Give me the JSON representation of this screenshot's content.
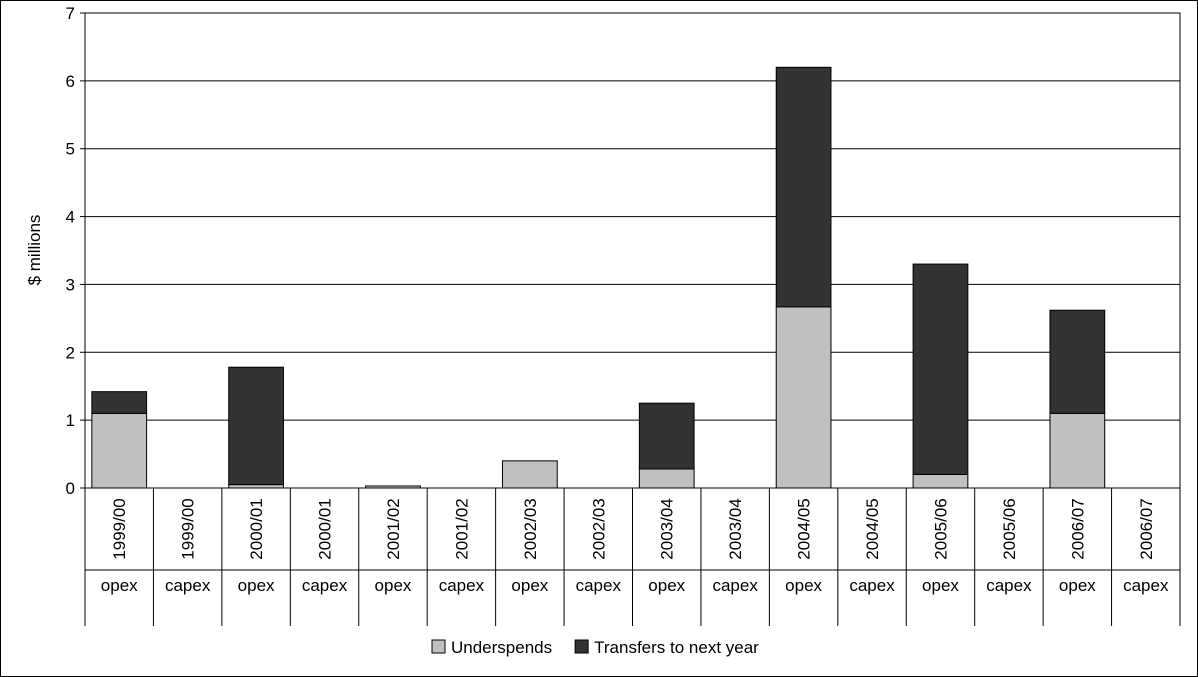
{
  "chart_data": {
    "type": "bar",
    "stacked": true,
    "ylabel": "$ millions",
    "ylim": [
      0,
      7
    ],
    "yticks": [
      "0",
      "1",
      "2",
      "3",
      "4",
      "5",
      "6",
      "7"
    ],
    "grid": true,
    "legend_position": "bottom",
    "years": [
      "1999/00",
      "1999/00",
      "2000/01",
      "2000/01",
      "2001/02",
      "2001/02",
      "2002/03",
      "2002/03",
      "2003/04",
      "2003/04",
      "2004/05",
      "2004/05",
      "2005/06",
      "2005/06",
      "2006/07",
      "2006/07"
    ],
    "types": [
      "opex",
      "capex",
      "opex",
      "capex",
      "opex",
      "capex",
      "opex",
      "capex",
      "opex",
      "capex",
      "opex",
      "capex",
      "opex",
      "capex",
      "opex",
      "capex"
    ],
    "series": [
      {
        "name": "Underspends",
        "color": "#c0c0c0",
        "values": [
          1.1,
          0,
          0.05,
          0,
          0.03,
          0,
          0.4,
          0,
          0.28,
          0,
          2.67,
          0,
          0.2,
          0,
          1.1,
          0
        ]
      },
      {
        "name": "Transfers to next year",
        "color": "#333333",
        "values": [
          0.32,
          0,
          1.73,
          0,
          0,
          0,
          0,
          0,
          0.97,
          0,
          3.53,
          0,
          3.1,
          0,
          1.52,
          0
        ]
      }
    ]
  }
}
